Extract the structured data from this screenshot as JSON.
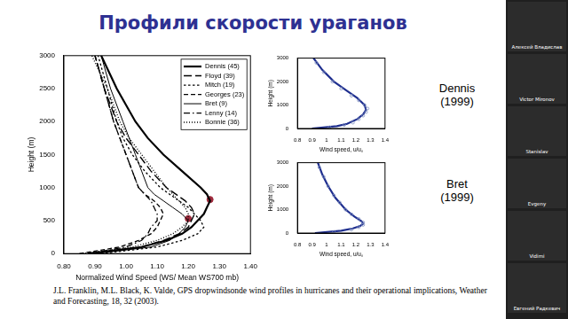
{
  "slide": {
    "title": "Профили скорости ураганов",
    "panel_labels": [
      "Dennis\n(1999)",
      "Bret\n(1999)"
    ],
    "citation": "J.L. Franklin, M.L. Black, K. Valde, GPS dropwindsonde wind profiles in hurricanes and their operational implications, Weather and Forecasting, 18, 32 (2003)."
  },
  "participants": [
    "Алексей Владислав",
    "Victor Mironov",
    "Stanislav",
    "Evgeny",
    "Vidimi",
    "Евгений Радкевич"
  ],
  "chart_data": [
    {
      "type": "line",
      "x_label": "Normalized Wind Speed (WS/ Mean WS700 mb)",
      "y_label": "Height (m)",
      "xlim": [
        0.8,
        1.4
      ],
      "xticks": [
        {
          "value": 0.8,
          "label": "0.80"
        },
        {
          "value": 0.9,
          "label": "0.90"
        },
        {
          "value": 1.0,
          "label": "1.00"
        },
        {
          "value": 1.1,
          "label": "1.10"
        },
        {
          "value": 1.2,
          "label": "1.20"
        },
        {
          "value": 1.3,
          "label": "1.30"
        },
        {
          "value": 1.4,
          "label": "1.40"
        }
      ],
      "ylim": [
        0,
        3000
      ],
      "yticks": [
        0,
        500,
        1000,
        1500,
        2000,
        2500,
        3000
      ],
      "grid": false,
      "legend": "upper right",
      "series": [
        {
          "name": "Dennis (45)",
          "color": "#000000",
          "line_style": "solid",
          "x": [
            0.88,
            1.05,
            1.13,
            1.18,
            1.21,
            1.23,
            1.25,
            1.26,
            1.27,
            1.26,
            1.24,
            1.18,
            1.12,
            1.07,
            1.03,
            0.97,
            0.92
          ],
          "y": [
            0,
            100,
            200,
            300,
            400,
            500,
            600,
            700,
            800,
            900,
            1000,
            1250,
            1500,
            1750,
            2000,
            2500,
            3000
          ]
        },
        {
          "name": "Floyd (39)",
          "color": "#000000",
          "line_style": "dashed",
          "x": [
            0.9,
            1.05,
            1.12,
            1.17,
            1.2,
            1.21,
            1.22,
            1.21,
            1.19,
            1.16,
            1.13,
            1.08,
            1.04,
            1.0,
            0.97,
            0.93,
            0.9
          ],
          "y": [
            0,
            100,
            200,
            300,
            400,
            500,
            600,
            700,
            800,
            900,
            1000,
            1250,
            1500,
            1750,
            2000,
            2500,
            3000
          ]
        },
        {
          "name": "Mitch (19)",
          "color": "#000000",
          "line_style": "short_dashed",
          "x": [
            0.92,
            1.1,
            1.18,
            1.23,
            1.25,
            1.24,
            1.22,
            1.2,
            1.17,
            1.14,
            1.11,
            1.06,
            1.02,
            0.99,
            0.97,
            0.94,
            0.91
          ],
          "y": [
            0,
            100,
            200,
            300,
            400,
            500,
            600,
            700,
            800,
            900,
            1000,
            1250,
            1500,
            1750,
            2000,
            2500,
            3000
          ]
        },
        {
          "name": "Georges (23)",
          "color": "#000000",
          "line_style": "medium_dashed",
          "x": [
            0.85,
            0.98,
            1.04,
            1.08,
            1.1,
            1.11,
            1.12,
            1.11,
            1.09,
            1.06,
            1.04,
            1.02,
            1.0,
            0.98,
            0.96,
            0.93,
            0.9
          ],
          "y": [
            0,
            100,
            200,
            300,
            400,
            500,
            600,
            700,
            800,
            900,
            1000,
            1250,
            1500,
            1750,
            2000,
            2500,
            3000
          ]
        },
        {
          "name": "Bret (9)",
          "color": "#000000",
          "line_style": "thin",
          "x": [
            0.9,
            1.08,
            1.14,
            1.17,
            1.19,
            1.2,
            1.18,
            1.15,
            1.12,
            1.09,
            1.07,
            1.05,
            1.03,
            1.01,
            0.99,
            0.95,
            0.92
          ],
          "y": [
            0,
            100,
            200,
            300,
            400,
            500,
            600,
            700,
            800,
            900,
            1000,
            1250,
            1500,
            1750,
            2000,
            2500,
            3000
          ]
        },
        {
          "name": "Lenny (14)",
          "color": "#000000",
          "line_style": "dash_dot",
          "x": [
            0.88,
            1.0,
            1.05,
            1.07,
            1.08,
            1.1,
            1.1,
            1.09,
            1.08,
            1.06,
            1.04,
            1.02,
            1.0,
            0.98,
            0.96,
            0.93,
            0.9
          ],
          "y": [
            0,
            100,
            200,
            300,
            400,
            500,
            600,
            700,
            800,
            900,
            1000,
            1250,
            1500,
            1750,
            2000,
            2500,
            3000
          ]
        },
        {
          "name": "Bonnie (36)",
          "color": "#000000",
          "line_style": "dotted",
          "x": [
            0.86,
            1.02,
            1.1,
            1.15,
            1.18,
            1.2,
            1.2,
            1.19,
            1.17,
            1.15,
            1.13,
            1.09,
            1.05,
            1.01,
            0.98,
            0.94,
            0.89
          ],
          "y": [
            0,
            100,
            200,
            300,
            400,
            500,
            600,
            700,
            800,
            900,
            1000,
            1250,
            1500,
            1750,
            2000,
            2500,
            3000
          ]
        }
      ],
      "points": {
        "color": "#9e2a3c",
        "x": [
          1.27,
          1.2
        ],
        "y": [
          820,
          530
        ]
      }
    },
    {
      "type": "scatter",
      "x_label": "Wind speed, u/uₛ",
      "y_label": "Height (m)",
      "xlim": [
        0.8,
        1.4
      ],
      "xticks": [
        0.8,
        0.9,
        1,
        1.1,
        1.2,
        1.3,
        1.4
      ],
      "ylim": [
        0,
        3000
      ],
      "yticks": [
        0,
        1000,
        2000,
        3000
      ],
      "grid": false,
      "series": [
        {
          "color": "#8090c0",
          "marker": "circle",
          "line_style": "none",
          "x": [
            1.02,
            1.12,
            1.18,
            1.22,
            1.25,
            1.27,
            1.28,
            1.26,
            1.22,
            1.17,
            1.1,
            1.04,
            0.98,
            0.93
          ],
          "y": [
            50,
            150,
            250,
            400,
            550,
            700,
            850,
            1000,
            1200,
            1400,
            1700,
            2000,
            2400,
            2800
          ]
        },
        {
          "color": "#1f2f8f",
          "line_style": "solid",
          "x": [
            0.9,
            1.07,
            1.14,
            1.21,
            1.25,
            1.27,
            1.26,
            1.21,
            1.14,
            1.05,
            0.97,
            0.91
          ],
          "y": [
            0,
            100,
            200,
            400,
            600,
            800,
            1000,
            1300,
            1600,
            2000,
            2500,
            3000
          ]
        }
      ]
    },
    {
      "type": "scatter",
      "x_label": "Wind speed, u/uₛ",
      "y_label": "Height (m)",
      "xlim": [
        0.8,
        1.4
      ],
      "xticks": [
        0.8,
        0.9,
        1,
        1.1,
        1.2,
        1.3,
        1.4
      ],
      "ylim": [
        0,
        3000
      ],
      "yticks": [
        0,
        1000,
        2000,
        3000
      ],
      "grid": false,
      "series": [
        {
          "color": "#8090c0",
          "marker": "circle",
          "line_style": "none",
          "x": [
            1.05,
            1.17,
            1.22,
            1.25,
            1.25,
            1.22,
            1.17,
            1.13,
            1.09,
            1.05,
            1.01,
            0.98,
            0.95
          ],
          "y": [
            50,
            150,
            250,
            350,
            450,
            600,
            800,
            1000,
            1300,
            1600,
            2000,
            2400,
            2800
          ]
        },
        {
          "color": "#1f2f8f",
          "line_style": "solid",
          "x": [
            0.92,
            1.1,
            1.18,
            1.23,
            1.25,
            1.24,
            1.19,
            1.13,
            1.06,
            1.01,
            0.97,
            0.94
          ],
          "y": [
            0,
            100,
            200,
            300,
            400,
            500,
            700,
            1000,
            1500,
            2000,
            2500,
            3000
          ]
        }
      ]
    }
  ]
}
